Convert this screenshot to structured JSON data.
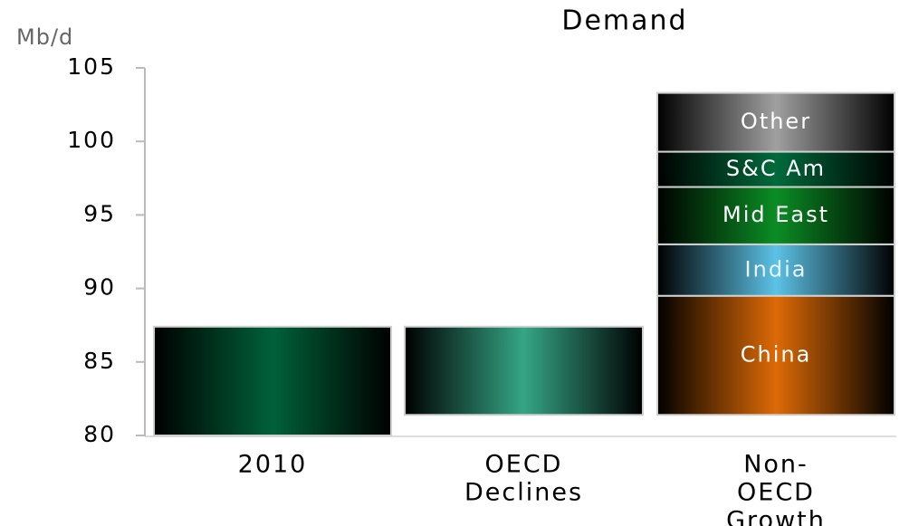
{
  "chart_data": {
    "type": "waterfall",
    "title": "Demand",
    "y_label": "Mb/d",
    "categories": [
      [
        "2010"
      ],
      [
        "OECD",
        "Declines"
      ],
      [
        "Non-",
        "OECD",
        "Growth"
      ]
    ],
    "start": {
      "value": 87.4,
      "color": "#00613a"
    },
    "change": {
      "value": -6.0,
      "color": "#35a585"
    },
    "segments": [
      {
        "name": "China",
        "value": 8.1,
        "color": "#dd6a06",
        "text_color": "#ffffff"
      },
      {
        "name": "India",
        "value": 3.5,
        "color": "#5cc2e6",
        "text_color": "#e8f4fa"
      },
      {
        "name": "Mid East",
        "value": 3.9,
        "color": "#0b8d24",
        "text_color": "#ffffff"
      },
      {
        "name": "S&C Am",
        "value": 2.4,
        "color": "#006a3c",
        "text_color": "#ffffff"
      },
      {
        "name": "Other",
        "value": 4.0,
        "color": "#a0a0a0",
        "text_color": "#ffffff"
      }
    ],
    "ylim": [
      80,
      105
    ],
    "yticks": [
      80,
      85,
      90,
      95,
      100,
      105
    ]
  }
}
